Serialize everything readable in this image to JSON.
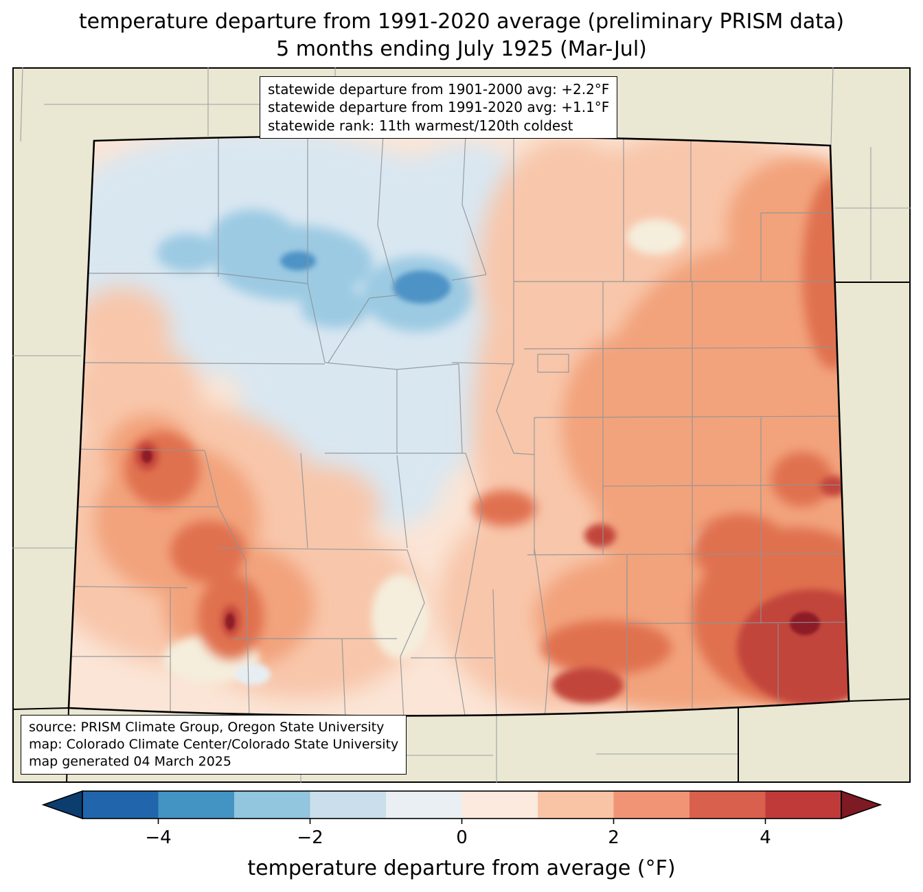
{
  "title": {
    "line1": "temperature departure from 1991-2020 average (preliminary PRISM data)",
    "line2": "5 months ending July 1925 (Mar-Jul)"
  },
  "stats_box": {
    "lines": [
      "statewide departure from 1901-2000 avg: +2.2°F",
      "statewide departure from 1991-2020 avg: +1.1°F",
      "statewide rank: 11th warmest/120th coldest"
    ]
  },
  "source_box": {
    "lines": [
      "source: PRISM Climate Group, Oregon State University",
      "map: Colorado Climate Center/Colorado State University",
      "map generated 04 March 2025"
    ]
  },
  "colorbar": {
    "label": "temperature departure from average (°F)",
    "range": [
      -5,
      5
    ],
    "ticks": [
      {
        "value": -4,
        "label": "−4"
      },
      {
        "value": -2,
        "label": "−2"
      },
      {
        "value": 0,
        "label": "0"
      },
      {
        "value": 2,
        "label": "2"
      },
      {
        "value": 4,
        "label": "4"
      }
    ],
    "segment_colors": [
      "#2166ac",
      "#4393c3",
      "#92c5de",
      "#cadfeb",
      "#e9eff3",
      "#fbeadd",
      "#f9c4a5",
      "#f09475",
      "#d8604c",
      "#c03a3a"
    ],
    "left_arrow_color": "#0b3d6f",
    "right_arrow_color": "#7e1a24"
  },
  "map": {
    "palette": {
      "outside": "#eae7d2",
      "base": "#fbe5d6",
      "blue0": "#e7eef3",
      "blue1": "#d9e7f1",
      "blue2": "#9ccae3",
      "blue3": "#4e93c6",
      "pale": "#f5eedd",
      "pink1": "#f8c6aa",
      "pink2": "#f2a37c",
      "red1": "#e0714f",
      "red2": "#c2453a",
      "red3": "#8d1b26",
      "county": "#8d9399",
      "border": "#000000"
    }
  }
}
